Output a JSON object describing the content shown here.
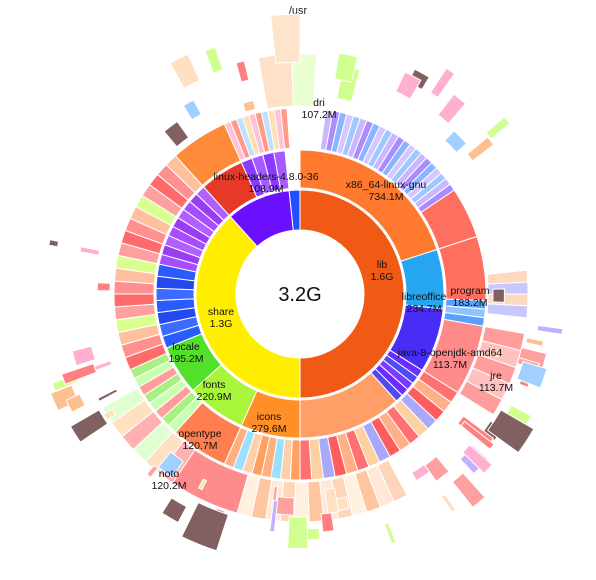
{
  "window": {
    "title": "/usr",
    "total": "3.2G"
  },
  "colors": {
    "background": "#ffffff",
    "separator": "#ffffff"
  },
  "chart_data": {
    "type": "sunburst",
    "root": {
      "name": "/usr",
      "size": "3.2G"
    },
    "nodes": [
      {
        "name": "lib",
        "size": "1.6G",
        "depth": 1,
        "color": "#f15a14"
      },
      {
        "name": "share",
        "size": "1.3G",
        "depth": 1,
        "color": "#ffee00"
      },
      {
        "name": "x86_64-linux-gnu",
        "size": "734.1M",
        "depth": 2,
        "color": "#ff7a2e",
        "parent": "lib"
      },
      {
        "name": "libreoffice",
        "size": "234.7M",
        "depth": 2,
        "color": "#26a6f0",
        "parent": "lib"
      },
      {
        "name": "java-8-openjdk-amd64",
        "size": "113.7M",
        "depth": 2,
        "color": "#4a2cf7",
        "parent": "lib"
      },
      {
        "name": "program",
        "size": "183.2M",
        "depth": 3,
        "color": "#ff6f5f",
        "parent": "libreoffice"
      },
      {
        "name": "jre",
        "size": "113.7M",
        "depth": 3,
        "color": "#ff8a8a",
        "parent": "java-8-openjdk-amd64"
      },
      {
        "name": "linux-headers-4.8.0-36",
        "size": "108.9M",
        "depth": 1,
        "color": "#e63a28"
      },
      {
        "name": "dri",
        "size": "107.2M",
        "depth": 2,
        "color": "#ff9a33",
        "parent": "lib"
      },
      {
        "name": "icons",
        "size": "279.6M",
        "depth": 2,
        "color": "#ff8f26",
        "parent": "share"
      },
      {
        "name": "fonts",
        "size": "220.9M",
        "depth": 2,
        "color": "#a8f53b",
        "parent": "share"
      },
      {
        "name": "locale",
        "size": "195.2M",
        "depth": 2,
        "color": "#52e02a",
        "parent": "share"
      },
      {
        "name": "opentype",
        "size": "120.7M",
        "depth": 3,
        "color": "#ff7f50",
        "parent": "fonts"
      },
      {
        "name": "noto",
        "size": "120.2M",
        "depth": 4,
        "color": "#ff8c8c",
        "parent": "opentype"
      }
    ]
  },
  "labels": [
    {
      "key": "lib",
      "line1": "lib",
      "line2": "1.6G"
    },
    {
      "key": "share",
      "line1": "share",
      "line2": "1.3G"
    },
    {
      "key": "x86",
      "line1": "x86_64-linux-gnu",
      "line2": "734.1M"
    },
    {
      "key": "libreoffice",
      "line1": "libreoffice",
      "line2": "234.7M"
    },
    {
      "key": "program",
      "line1": "program",
      "line2": "183.2M"
    },
    {
      "key": "java",
      "line1": "java-8-openjdk-amd64",
      "line2": "113.7M"
    },
    {
      "key": "jre",
      "line1": "jre",
      "line2": "113.7M"
    },
    {
      "key": "headers",
      "line1": "linux-headers-4.8.0-36",
      "line2": "108.9M"
    },
    {
      "key": "dri",
      "line1": "dri",
      "line2": "107.2M"
    },
    {
      "key": "icons",
      "line1": "icons",
      "line2": "279.6M"
    },
    {
      "key": "fonts",
      "line1": "fonts",
      "line2": "220.9M"
    },
    {
      "key": "locale",
      "line1": "locale",
      "line2": "195.2M"
    },
    {
      "key": "opentype",
      "line1": "opentype",
      "line2": "120.7M"
    },
    {
      "key": "noto",
      "line1": "noto",
      "line2": "120.2M"
    }
  ]
}
